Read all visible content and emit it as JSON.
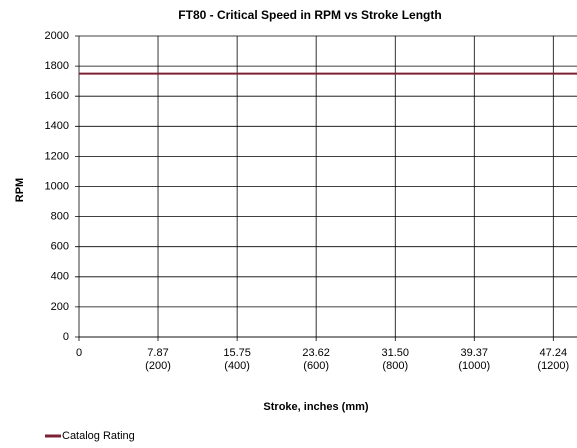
{
  "chart_data": {
    "type": "line",
    "title": "FT80 - Critical Speed in RPM vs Stroke Length",
    "x_label": "Stroke, inches (mm)",
    "y_label": "RPM",
    "x": [
      0,
      49.6
    ],
    "series": [
      {
        "name": "Catalog Rating",
        "color": "#7b2035",
        "values": [
          1750,
          1750
        ]
      }
    ],
    "xlim": [
      0,
      49.6
    ],
    "xticks": [
      0,
      {
        "value": 7.87,
        "label": "7.87\n(200)"
      },
      {
        "value": 15.75,
        "label": "15.75\n(400)"
      },
      {
        "value": 23.62,
        "label": "23.62\n(600)"
      },
      {
        "value": 31.5,
        "label": "31.50\n(800)"
      },
      {
        "value": 39.37,
        "label": "39.37\n(1000)"
      },
      {
        "value": 47.24,
        "label": "47.24\n(1200)"
      }
    ],
    "ylim": [
      0,
      2000
    ],
    "yticks": [
      0,
      200,
      400,
      600,
      800,
      1000,
      1200,
      1400,
      1600,
      1800,
      2000
    ],
    "grid": true,
    "legend": "bottom-left"
  }
}
